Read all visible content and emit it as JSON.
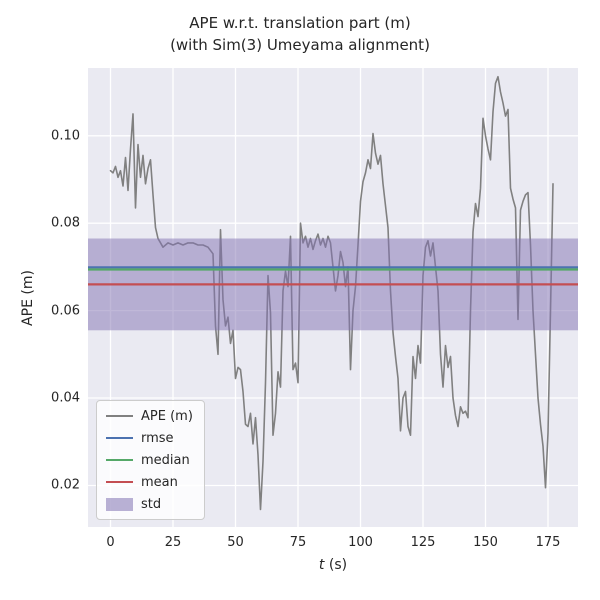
{
  "figure": {
    "axes_background": "#eaeaf2",
    "grid_color": "#ffffff",
    "text_color": "#262626"
  },
  "axes": {
    "xlabel_var": "t",
    "xlabel_unit": " (s)",
    "ylabel": "APE (m)"
  },
  "legend": {
    "items": [
      {
        "label": "APE (m)",
        "swatch": "line",
        "color": "#808080"
      },
      {
        "label": "rmse",
        "swatch": "line",
        "color": "#4c72b0"
      },
      {
        "label": "median",
        "swatch": "line",
        "color": "#55a868"
      },
      {
        "label": "mean",
        "swatch": "line",
        "color": "#c44e52"
      },
      {
        "label": "std",
        "swatch": "patch",
        "color": "rgba(129,114,178,0.55)"
      }
    ]
  },
  "chart_data": {
    "type": "line",
    "title": "APE w.r.t. translation part (m)",
    "subtitle": "(with Sim(3) Umeyama alignment)",
    "xlabel": "t (s)",
    "ylabel": "APE (m)",
    "xlim": [
      -9,
      187
    ],
    "ylim": [
      0.0105,
      0.1155
    ],
    "grid": true,
    "legend_position": "lower left",
    "x_ticks": [
      0,
      25,
      50,
      75,
      100,
      125,
      150,
      175
    ],
    "x_tick_labels": [
      "0",
      "25",
      "50",
      "75",
      "100",
      "125",
      "150",
      "175"
    ],
    "y_ticks": [
      0.02,
      0.04,
      0.06,
      0.08,
      0.1
    ],
    "y_tick_labels": [
      "0.02",
      "0.04",
      "0.06",
      "0.08",
      "0.10"
    ],
    "series": [
      {
        "name": "APE (m)",
        "type": "line",
        "color": "#808080",
        "x": [
          0,
          1,
          2,
          3,
          4,
          5,
          6,
          7,
          8,
          9,
          10,
          11,
          12,
          13,
          14,
          15,
          16,
          17,
          18,
          19,
          21,
          23,
          25,
          27,
          29,
          31,
          33,
          35,
          37,
          39,
          41,
          42,
          43,
          44,
          45,
          46,
          47,
          48,
          49,
          50,
          51,
          52,
          53,
          54,
          55,
          56,
          57,
          58,
          59,
          60,
          61,
          62,
          63,
          64,
          65,
          66,
          67,
          68,
          69,
          70,
          71,
          72,
          73,
          74,
          75,
          76,
          77,
          78,
          79,
          80,
          81,
          82,
          83,
          84,
          85,
          86,
          87,
          88,
          89,
          90,
          91,
          92,
          93,
          94,
          95,
          96,
          97,
          98,
          99,
          100,
          101,
          102,
          103,
          104,
          105,
          106,
          107,
          108,
          109,
          110,
          111,
          112,
          113,
          114,
          115,
          116,
          117,
          118,
          119,
          120,
          121,
          122,
          123,
          124,
          125,
          126,
          127,
          128,
          129,
          130,
          131,
          132,
          133,
          134,
          135,
          136,
          137,
          138,
          139,
          140,
          141,
          142,
          143,
          144,
          145,
          146,
          147,
          148,
          149,
          150,
          151,
          152,
          153,
          154,
          155,
          156,
          157,
          158,
          159,
          160,
          161,
          162,
          163,
          164,
          165,
          166,
          167,
          168,
          169,
          170,
          171,
          172,
          173,
          174,
          175,
          176,
          177
        ],
        "y": [
          0.092,
          0.0915,
          0.093,
          0.0905,
          0.092,
          0.0885,
          0.095,
          0.0875,
          0.097,
          0.105,
          0.0835,
          0.098,
          0.0905,
          0.0955,
          0.089,
          0.0925,
          0.0945,
          0.0865,
          0.079,
          0.0765,
          0.0745,
          0.0755,
          0.075,
          0.0755,
          0.075,
          0.0755,
          0.0755,
          0.075,
          0.075,
          0.0745,
          0.073,
          0.0565,
          0.05,
          0.0785,
          0.0625,
          0.0565,
          0.0585,
          0.0525,
          0.0555,
          0.0445,
          0.047,
          0.0465,
          0.0415,
          0.034,
          0.0335,
          0.0365,
          0.0295,
          0.0355,
          0.027,
          0.0145,
          0.0255,
          0.0435,
          0.068,
          0.0595,
          0.0315,
          0.0365,
          0.046,
          0.0425,
          0.0645,
          0.069,
          0.0655,
          0.077,
          0.0465,
          0.048,
          0.0435,
          0.08,
          0.0755,
          0.077,
          0.0745,
          0.0765,
          0.074,
          0.076,
          0.0775,
          0.075,
          0.0765,
          0.0745,
          0.077,
          0.0755,
          0.07,
          0.0645,
          0.068,
          0.0735,
          0.071,
          0.0655,
          0.07,
          0.0465,
          0.06,
          0.0655,
          0.075,
          0.085,
          0.0895,
          0.0915,
          0.0945,
          0.0925,
          0.1005,
          0.096,
          0.0935,
          0.0955,
          0.089,
          0.084,
          0.079,
          0.0645,
          0.055,
          0.0495,
          0.0445,
          0.0325,
          0.04,
          0.0415,
          0.0335,
          0.0315,
          0.0495,
          0.0445,
          0.052,
          0.048,
          0.068,
          0.0745,
          0.076,
          0.0725,
          0.0755,
          0.07,
          0.0645,
          0.05,
          0.0425,
          0.052,
          0.047,
          0.0495,
          0.04,
          0.036,
          0.0335,
          0.038,
          0.0365,
          0.037,
          0.0355,
          0.06,
          0.078,
          0.0845,
          0.0815,
          0.088,
          0.104,
          0.1,
          0.097,
          0.0945,
          0.1055,
          0.112,
          0.1135,
          0.11,
          0.1075,
          0.1045,
          0.106,
          0.088,
          0.0855,
          0.0835,
          0.058,
          0.083,
          0.085,
          0.0865,
          0.087,
          0.075,
          0.06,
          0.05,
          0.04,
          0.034,
          0.029,
          0.0195,
          0.032,
          0.06,
          0.089
        ]
      },
      {
        "name": "rmse",
        "type": "hline",
        "color": "#4c72b0",
        "value": 0.0699
      },
      {
        "name": "median",
        "type": "hline",
        "color": "#55a868",
        "value": 0.0694
      },
      {
        "name": "mean",
        "type": "hline",
        "color": "#c44e52",
        "value": 0.066
      },
      {
        "name": "std",
        "type": "band",
        "color": "#8172b2",
        "range": [
          0.0555,
          0.0765
        ]
      }
    ]
  }
}
